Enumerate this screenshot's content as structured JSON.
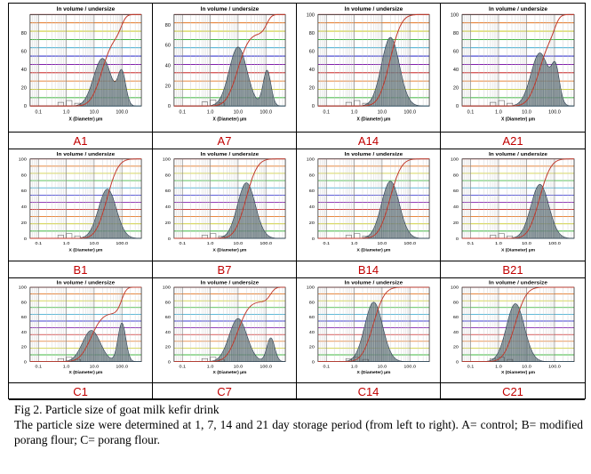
{
  "panels": [
    {
      "label": "A1",
      "title": "In volume / undersize",
      "yticks": [
        "0",
        "20",
        "40",
        "60",
        "80"
      ],
      "xticks": [
        "0.1",
        "1.0",
        "10.0",
        "100.0"
      ],
      "xlabel": "X (Diameter) µm"
    },
    {
      "label": "A7",
      "title": "In volume / undersize",
      "yticks": [
        "0",
        "20",
        "40",
        "60",
        "80"
      ],
      "xticks": [
        "0.1",
        "1.0",
        "10.0",
        "100.0"
      ],
      "xlabel": "X (Diameter) µm"
    },
    {
      "label": "A14",
      "title": "In volume / undersize",
      "yticks": [
        "0",
        "20",
        "40",
        "60",
        "80",
        "100"
      ],
      "xticks": [
        "0.1",
        "1.0",
        "10.0",
        "100.0"
      ],
      "xlabel": "X (Diameter) µm"
    },
    {
      "label": "A21",
      "title": "In volume / undersize",
      "yticks": [
        "0",
        "20",
        "40",
        "60",
        "80",
        "100"
      ],
      "xticks": [
        "0.1",
        "1.0",
        "10.0",
        "100.0"
      ],
      "xlabel": "X (Diameter) µm"
    },
    {
      "label": "B1",
      "title": "In volume / undersize",
      "yticks": [
        "0",
        "20",
        "40",
        "60",
        "80",
        "100"
      ],
      "xticks": [
        "0.1",
        "1.0",
        "10.0",
        "100.0"
      ],
      "xlabel": "X (Diameter) µm"
    },
    {
      "label": "B7",
      "title": "In volume / undersize",
      "yticks": [
        "0",
        "20",
        "40",
        "60",
        "80",
        "100"
      ],
      "xticks": [
        "0.1",
        "1.0",
        "10.0",
        "100.0"
      ],
      "xlabel": "X (Diameter) µm"
    },
    {
      "label": "B14",
      "title": "In volume / undersize",
      "yticks": [
        "0",
        "20",
        "40",
        "60",
        "80",
        "100"
      ],
      "xticks": [
        "0.1",
        "1.0",
        "10.0",
        "100.0"
      ],
      "xlabel": "X (Diameter) µm"
    },
    {
      "label": "B21",
      "title": "In volume / undersize",
      "yticks": [
        "0",
        "20",
        "40",
        "60",
        "80",
        "100"
      ],
      "xticks": [
        "0.1",
        "1.0",
        "10.0",
        "100.0"
      ],
      "xlabel": "X (Diameter) µm"
    },
    {
      "label": "C1",
      "title": "In volume / undersize",
      "yticks": [
        "0",
        "20",
        "40",
        "60",
        "80",
        "100"
      ],
      "xticks": [
        "0.1",
        "1.0",
        "10.0",
        "100.0"
      ],
      "xlabel": "X (Diameter) µm"
    },
    {
      "label": "C7",
      "title": "In volume / undersize",
      "yticks": [
        "0",
        "20",
        "40",
        "60",
        "80",
        "100"
      ],
      "xticks": [
        "0.1",
        "1.0",
        "10.0",
        "100.0"
      ],
      "xlabel": "X (Diameter) µm"
    },
    {
      "label": "C14",
      "title": "In volume / undersize",
      "yticks": [
        "0",
        "20",
        "40",
        "60",
        "80",
        "100"
      ],
      "xticks": [
        "0.1",
        "1.0",
        "10.0",
        "100.0"
      ],
      "xlabel": "X (Diameter) µm"
    },
    {
      "label": "C21",
      "title": "In volume / undersize",
      "yticks": [
        "0",
        "20",
        "40",
        "60",
        "80",
        "100"
      ],
      "xticks": [
        "0.1",
        "1.0",
        "10.0",
        "100.0"
      ],
      "xlabel": "X (Diameter) µm"
    }
  ],
  "caption": {
    "title": "Fig 2. Particle  size  of goat milk  kefir  drink",
    "body": "The particle size were determined at 1, 7, 14 and 21 day storage period (from left to right). A= control;  B= modified  porang flour;  C= porang flour."
  },
  "colors": {
    "gridlines": [
      "#c00000",
      "#e06000",
      "#c0c000",
      "#00a000",
      "#0090c0",
      "#0000c0",
      "#7000a0"
    ],
    "curve": "#c0392b",
    "fill": "#7f8c8d",
    "label": "#c00000"
  },
  "chart_data": [
    {
      "type": "area",
      "panel": "A1",
      "xscale": "log",
      "xlim": [
        0.05,
        500
      ],
      "ylim": [
        0,
        100
      ],
      "peaks": [
        {
          "x": 20,
          "y": 52
        },
        {
          "x": 100,
          "y": 35
        }
      ],
      "cumulative_end_x": 130
    },
    {
      "type": "area",
      "panel": "A7",
      "xscale": "log",
      "xlim": [
        0.05,
        500
      ],
      "ylim": [
        0,
        90
      ],
      "peaks": [
        {
          "x": 10,
          "y": 58
        },
        {
          "x": 110,
          "y": 35
        }
      ],
      "cumulative_end_x": 180
    },
    {
      "type": "area",
      "panel": "A14",
      "xscale": "log",
      "xlim": [
        0.05,
        500
      ],
      "ylim": [
        0,
        100
      ],
      "peaks": [
        {
          "x": 20,
          "y": 75
        }
      ],
      "cumulative_end_x": 80
    },
    {
      "type": "area",
      "panel": "A21",
      "xscale": "log",
      "xlim": [
        0.05,
        500
      ],
      "ylim": [
        0,
        100
      ],
      "peaks": [
        {
          "x": 30,
          "y": 58
        },
        {
          "x": 110,
          "y": 35
        }
      ],
      "cumulative_end_x": 160
    },
    {
      "type": "area",
      "panel": "B1",
      "xscale": "log",
      "xlim": [
        0.05,
        500
      ],
      "ylim": [
        0,
        100
      ],
      "peaks": [
        {
          "x": 30,
          "y": 62
        }
      ],
      "cumulative_end_x": 130
    },
    {
      "type": "area",
      "panel": "B7",
      "xscale": "log",
      "xlim": [
        0.05,
        500
      ],
      "ylim": [
        0,
        100
      ],
      "peaks": [
        {
          "x": 20,
          "y": 70
        }
      ],
      "cumulative_end_x": 100
    },
    {
      "type": "area",
      "panel": "B14",
      "xscale": "log",
      "xlim": [
        0.05,
        500
      ],
      "ylim": [
        0,
        100
      ],
      "peaks": [
        {
          "x": 20,
          "y": 72
        }
      ],
      "cumulative_end_x": 110
    },
    {
      "type": "area",
      "panel": "B21",
      "xscale": "log",
      "xlim": [
        0.05,
        500
      ],
      "ylim": [
        0,
        100
      ],
      "peaks": [
        {
          "x": 30,
          "y": 68
        }
      ],
      "cumulative_end_x": 120
    },
    {
      "type": "area",
      "panel": "C1",
      "xscale": "log",
      "xlim": [
        0.05,
        500
      ],
      "ylim": [
        0,
        100
      ],
      "peaks": [
        {
          "x": 8,
          "y": 42
        },
        {
          "x": 100,
          "y": 52
        }
      ],
      "cumulative_end_x": 150
    },
    {
      "type": "area",
      "panel": "C7",
      "xscale": "log",
      "xlim": [
        0.05,
        500
      ],
      "ylim": [
        0,
        100
      ],
      "peaks": [
        {
          "x": 10,
          "y": 58
        },
        {
          "x": 150,
          "y": 32
        }
      ],
      "cumulative_end_x": 200
    },
    {
      "type": "area",
      "panel": "C14",
      "xscale": "log",
      "xlim": [
        0.05,
        500
      ],
      "ylim": [
        0,
        100
      ],
      "peaks": [
        {
          "x": 5,
          "y": 80
        }
      ],
      "cumulative_end_x": 40
    },
    {
      "type": "area",
      "panel": "C21",
      "xscale": "log",
      "xlim": [
        0.05,
        500
      ],
      "ylim": [
        0,
        100
      ],
      "peaks": [
        {
          "x": 4,
          "y": 78
        }
      ],
      "cumulative_end_x": 40
    }
  ]
}
